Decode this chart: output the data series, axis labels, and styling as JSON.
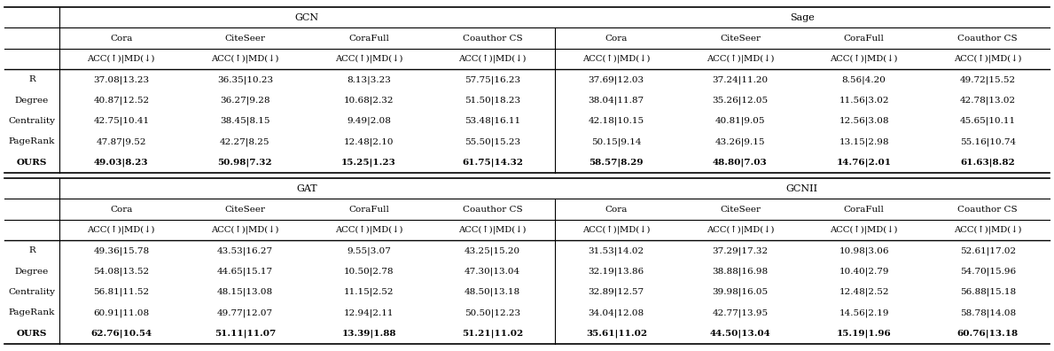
{
  "table1": {
    "title_left": "GCN",
    "title_right": "Sage",
    "datasets": [
      "Cora",
      "CiteSeer",
      "CoraFull",
      "Coauthor CS"
    ],
    "header": "ACC(↑)|MD(↓)",
    "rows": [
      {
        "name": "R",
        "bold": false,
        "left": [
          "37.08|13.23",
          "36.35|10.23",
          "8.13|3.23",
          "57.75|16.23"
        ],
        "right": [
          "37.69|12.03",
          "37.24|11.20",
          "8.56|4.20",
          "49.72|15.52"
        ]
      },
      {
        "name": "Degree",
        "bold": false,
        "left": [
          "40.87|12.52",
          "36.27|9.28",
          "10.68|2.32",
          "51.50|18.23"
        ],
        "right": [
          "38.04|11.87",
          "35.26|12.05",
          "11.56|3.02",
          "42.78|13.02"
        ]
      },
      {
        "name": "Centrality",
        "bold": false,
        "left": [
          "42.75|10.41",
          "38.45|8.15",
          "9.49|2.08",
          "53.48|16.11"
        ],
        "right": [
          "42.18|10.15",
          "40.81|9.05",
          "12.56|3.08",
          "45.65|10.11"
        ]
      },
      {
        "name": "PageRank",
        "bold": false,
        "left": [
          "47.87|9.52",
          "42.27|8.25",
          "12.48|2.10",
          "55.50|15.23"
        ],
        "right": [
          "50.15|9.14",
          "43.26|9.15",
          "13.15|2.98",
          "55.16|10.74"
        ]
      },
      {
        "name": "OURS",
        "bold": true,
        "left": [
          "49.03|8.23",
          "50.98|7.32",
          "15.25|1.23",
          "61.75|14.32"
        ],
        "right": [
          "58.57|8.29",
          "48.80|7.03",
          "14.76|2.01",
          "61.63|8.82"
        ]
      }
    ]
  },
  "table2": {
    "title_left": "GAT",
    "title_right": "GCNII",
    "datasets": [
      "Cora",
      "CiteSeer",
      "CoraFull",
      "Coauthor CS"
    ],
    "header": "ACC(↑)|MD(↓)",
    "rows": [
      {
        "name": "R",
        "bold": false,
        "left": [
          "49.36|15.78",
          "43.53|16.27",
          "9.55|3.07",
          "43.25|15.20"
        ],
        "right": [
          "31.53|14.02",
          "37.29|17.32",
          "10.98|3.06",
          "52.61|17.02"
        ]
      },
      {
        "name": "Degree",
        "bold": false,
        "left": [
          "54.08|13.52",
          "44.65|15.17",
          "10.50|2.78",
          "47.30|13.04"
        ],
        "right": [
          "32.19|13.86",
          "38.88|16.98",
          "10.40|2.79",
          "54.70|15.96"
        ]
      },
      {
        "name": "Centrality",
        "bold": false,
        "left": [
          "56.81|11.52",
          "48.15|13.08",
          "11.15|2.52",
          "48.50|13.18"
        ],
        "right": [
          "32.89|12.57",
          "39.98|16.05",
          "12.48|2.52",
          "56.88|15.18"
        ]
      },
      {
        "name": "PageRank",
        "bold": false,
        "left": [
          "60.91|11.08",
          "49.77|12.07",
          "12.94|2.11",
          "50.50|12.23"
        ],
        "right": [
          "34.04|12.08",
          "42.77|13.95",
          "14.56|2.19",
          "58.78|14.08"
        ]
      },
      {
        "name": "OURS",
        "bold": true,
        "left": [
          "62.76|10.54",
          "51.11|11.07",
          "13.39|1.88",
          "51.21|11.02"
        ],
        "right": [
          "35.61|11.02",
          "44.50|13.04",
          "15.19|1.96",
          "60.76|13.18"
        ]
      }
    ]
  },
  "font_size": 7.5,
  "header_font_size": 7.5,
  "title_font_size": 8.0,
  "bg_color": "#ffffff",
  "text_color": "#000000"
}
